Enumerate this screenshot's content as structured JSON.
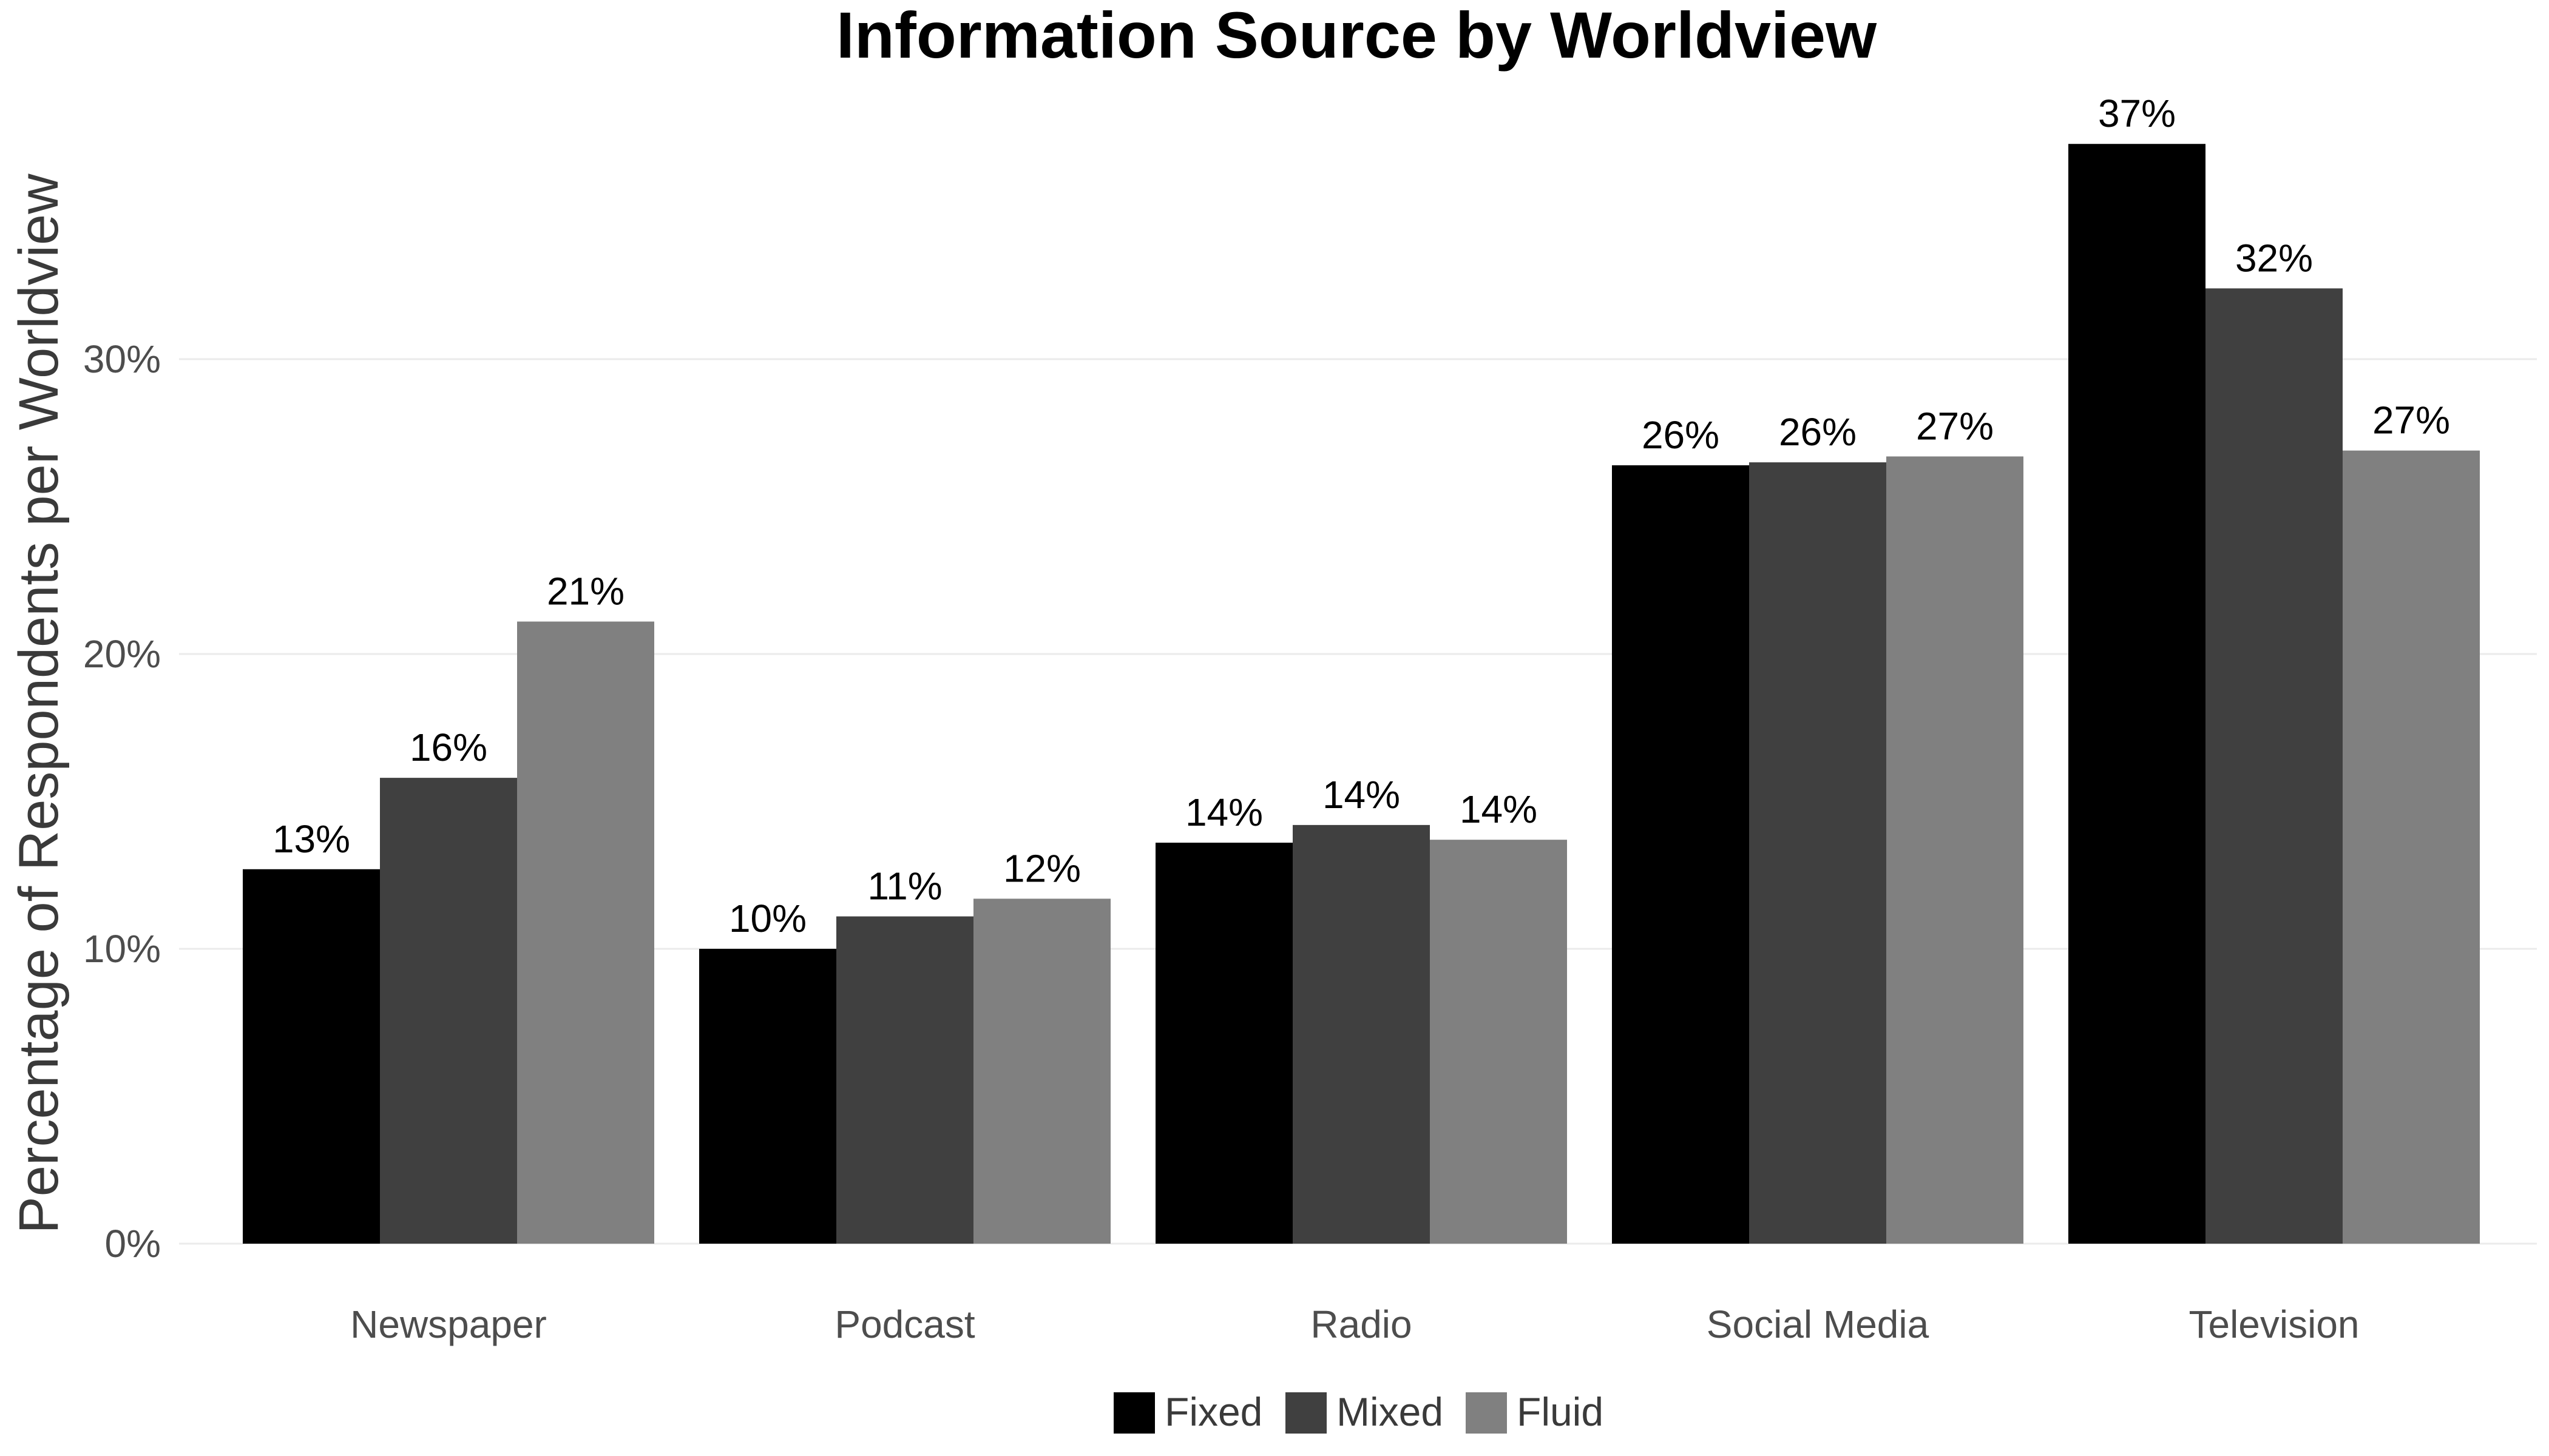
{
  "chart_data": {
    "type": "bar",
    "title": "Information Source by Worldview",
    "xlabel": "",
    "ylabel": "Percentage of Respondents per Worldview",
    "categories": [
      "Newspaper",
      "Podcast",
      "Radio",
      "Social Media",
      "Television"
    ],
    "series": [
      {
        "name": "Fixed",
        "color": "#000000",
        "values": [
          12.7,
          10.0,
          13.6,
          26.4,
          37.3
        ],
        "labels": [
          "13%",
          "10%",
          "14%",
          "26%",
          "37%"
        ]
      },
      {
        "name": "Mixed",
        "color": "#404040",
        "values": [
          15.8,
          11.1,
          14.2,
          26.5,
          32.4
        ],
        "labels": [
          "16%",
          "11%",
          "14%",
          "26%",
          "32%"
        ]
      },
      {
        "name": "Fluid",
        "color": "#808080",
        "values": [
          21.1,
          11.7,
          13.7,
          26.7,
          26.9
        ],
        "labels": [
          "21%",
          "12%",
          "14%",
          "27%",
          "27%"
        ]
      }
    ],
    "yticks": [
      0,
      10,
      20,
      30
    ],
    "ytick_labels": [
      "0%",
      "10%",
      "20%",
      "30%"
    ],
    "ylim": [
      0,
      38
    ],
    "grid": true,
    "legend_position": "bottom"
  }
}
